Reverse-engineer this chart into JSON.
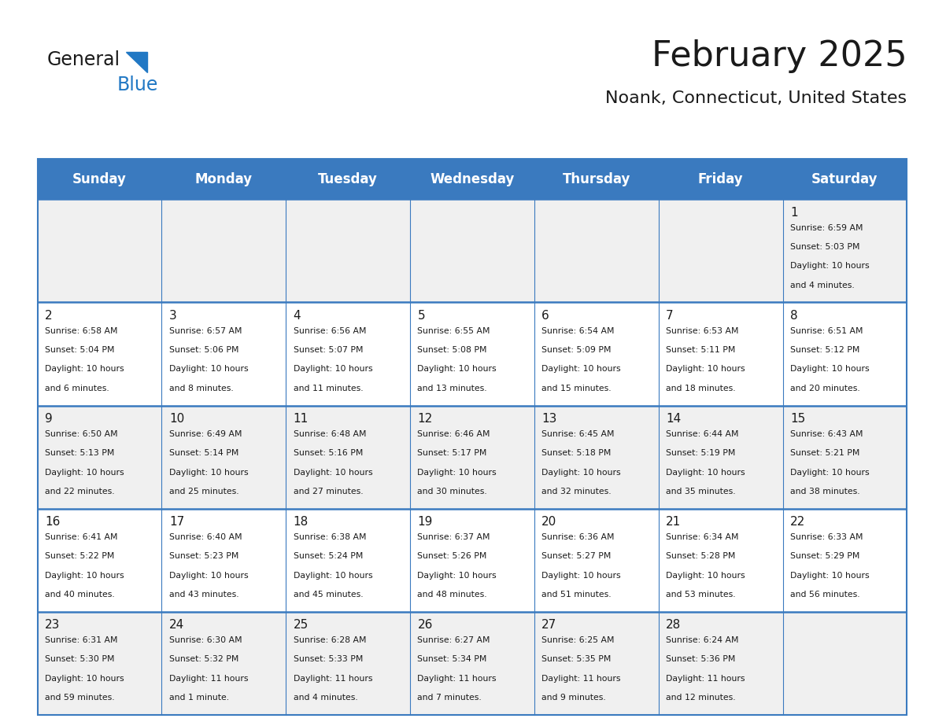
{
  "title": "February 2025",
  "subtitle": "Noank, Connecticut, United States",
  "header_bg": "#3a7abf",
  "header_text_color": "#ffffff",
  "cell_bg_odd": "#f0f0f0",
  "cell_bg_even": "#ffffff",
  "border_color": "#3a7abf",
  "days_of_week": [
    "Sunday",
    "Monday",
    "Tuesday",
    "Wednesday",
    "Thursday",
    "Friday",
    "Saturday"
  ],
  "calendar_data": [
    [
      null,
      null,
      null,
      null,
      null,
      null,
      {
        "day": 1,
        "sunrise": "6:59 AM",
        "sunset": "5:03 PM",
        "daylight": "10 hours",
        "daylight2": "and 4 minutes."
      }
    ],
    [
      {
        "day": 2,
        "sunrise": "6:58 AM",
        "sunset": "5:04 PM",
        "daylight": "10 hours",
        "daylight2": "and 6 minutes."
      },
      {
        "day": 3,
        "sunrise": "6:57 AM",
        "sunset": "5:06 PM",
        "daylight": "10 hours",
        "daylight2": "and 8 minutes."
      },
      {
        "day": 4,
        "sunrise": "6:56 AM",
        "sunset": "5:07 PM",
        "daylight": "10 hours",
        "daylight2": "and 11 minutes."
      },
      {
        "day": 5,
        "sunrise": "6:55 AM",
        "sunset": "5:08 PM",
        "daylight": "10 hours",
        "daylight2": "and 13 minutes."
      },
      {
        "day": 6,
        "sunrise": "6:54 AM",
        "sunset": "5:09 PM",
        "daylight": "10 hours",
        "daylight2": "and 15 minutes."
      },
      {
        "day": 7,
        "sunrise": "6:53 AM",
        "sunset": "5:11 PM",
        "daylight": "10 hours",
        "daylight2": "and 18 minutes."
      },
      {
        "day": 8,
        "sunrise": "6:51 AM",
        "sunset": "5:12 PM",
        "daylight": "10 hours",
        "daylight2": "and 20 minutes."
      }
    ],
    [
      {
        "day": 9,
        "sunrise": "6:50 AM",
        "sunset": "5:13 PM",
        "daylight": "10 hours",
        "daylight2": "and 22 minutes."
      },
      {
        "day": 10,
        "sunrise": "6:49 AM",
        "sunset": "5:14 PM",
        "daylight": "10 hours",
        "daylight2": "and 25 minutes."
      },
      {
        "day": 11,
        "sunrise": "6:48 AM",
        "sunset": "5:16 PM",
        "daylight": "10 hours",
        "daylight2": "and 27 minutes."
      },
      {
        "day": 12,
        "sunrise": "6:46 AM",
        "sunset": "5:17 PM",
        "daylight": "10 hours",
        "daylight2": "and 30 minutes."
      },
      {
        "day": 13,
        "sunrise": "6:45 AM",
        "sunset": "5:18 PM",
        "daylight": "10 hours",
        "daylight2": "and 32 minutes."
      },
      {
        "day": 14,
        "sunrise": "6:44 AM",
        "sunset": "5:19 PM",
        "daylight": "10 hours",
        "daylight2": "and 35 minutes."
      },
      {
        "day": 15,
        "sunrise": "6:43 AM",
        "sunset": "5:21 PM",
        "daylight": "10 hours",
        "daylight2": "and 38 minutes."
      }
    ],
    [
      {
        "day": 16,
        "sunrise": "6:41 AM",
        "sunset": "5:22 PM",
        "daylight": "10 hours",
        "daylight2": "and 40 minutes."
      },
      {
        "day": 17,
        "sunrise": "6:40 AM",
        "sunset": "5:23 PM",
        "daylight": "10 hours",
        "daylight2": "and 43 minutes."
      },
      {
        "day": 18,
        "sunrise": "6:38 AM",
        "sunset": "5:24 PM",
        "daylight": "10 hours",
        "daylight2": "and 45 minutes."
      },
      {
        "day": 19,
        "sunrise": "6:37 AM",
        "sunset": "5:26 PM",
        "daylight": "10 hours",
        "daylight2": "and 48 minutes."
      },
      {
        "day": 20,
        "sunrise": "6:36 AM",
        "sunset": "5:27 PM",
        "daylight": "10 hours",
        "daylight2": "and 51 minutes."
      },
      {
        "day": 21,
        "sunrise": "6:34 AM",
        "sunset": "5:28 PM",
        "daylight": "10 hours",
        "daylight2": "and 53 minutes."
      },
      {
        "day": 22,
        "sunrise": "6:33 AM",
        "sunset": "5:29 PM",
        "daylight": "10 hours",
        "daylight2": "and 56 minutes."
      }
    ],
    [
      {
        "day": 23,
        "sunrise": "6:31 AM",
        "sunset": "5:30 PM",
        "daylight": "10 hours",
        "daylight2": "and 59 minutes."
      },
      {
        "day": 24,
        "sunrise": "6:30 AM",
        "sunset": "5:32 PM",
        "daylight": "11 hours",
        "daylight2": "and 1 minute."
      },
      {
        "day": 25,
        "sunrise": "6:28 AM",
        "sunset": "5:33 PM",
        "daylight": "11 hours",
        "daylight2": "and 4 minutes."
      },
      {
        "day": 26,
        "sunrise": "6:27 AM",
        "sunset": "5:34 PM",
        "daylight": "11 hours",
        "daylight2": "and 7 minutes."
      },
      {
        "day": 27,
        "sunrise": "6:25 AM",
        "sunset": "5:35 PM",
        "daylight": "11 hours",
        "daylight2": "and 9 minutes."
      },
      {
        "day": 28,
        "sunrise": "6:24 AM",
        "sunset": "5:36 PM",
        "daylight": "11 hours",
        "daylight2": "and 12 minutes."
      },
      null
    ]
  ],
  "logo_text_general": "General",
  "logo_text_blue": "Blue",
  "logo_color_general": "#1a1a1a",
  "logo_color_blue": "#2178c4"
}
